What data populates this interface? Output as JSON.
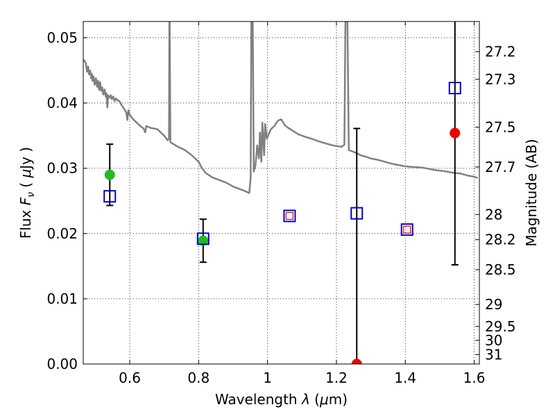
{
  "chart_data": {
    "type": "scatter",
    "xlabel": "Wavelength  λ (μm)",
    "ylabel": "Flux  F_ν  ( μJy )",
    "ylabel_parts": {
      "prefix": "Flux  ",
      "symbol": "F",
      "subscript": "ν",
      "unit_open": "  ( ",
      "mu": "μ",
      "unit": "Jy )"
    },
    "xlabel_parts": {
      "prefix": "Wavelength  ",
      "symbol": "λ",
      "unit_open": " (",
      "mu": "μ",
      "unit": "m)"
    },
    "ylabel_right": "Magnitude (AB)",
    "xlim": [
      0.465,
      1.615
    ],
    "ylim": [
      0.0,
      0.0525
    ],
    "grid": true,
    "x_ticks": [
      {
        "value": 0.6,
        "label": "0.6"
      },
      {
        "value": 0.8,
        "label": "0.8"
      },
      {
        "value": 1.0,
        "label": "1"
      },
      {
        "value": 1.2,
        "label": "1.2"
      },
      {
        "value": 1.4,
        "label": "1.4"
      },
      {
        "value": 1.6,
        "label": "1.6"
      }
    ],
    "y_ticks": [
      {
        "value": 0.0,
        "label": "0.00"
      },
      {
        "value": 0.01,
        "label": "0.01"
      },
      {
        "value": 0.02,
        "label": "0.02"
      },
      {
        "value": 0.03,
        "label": "0.03"
      },
      {
        "value": 0.04,
        "label": "0.04"
      },
      {
        "value": 0.05,
        "label": "0.05"
      }
    ],
    "mag_ticks": [
      {
        "mag": 27.2,
        "label": "27.2"
      },
      {
        "mag": 27.3,
        "label": "27.3"
      },
      {
        "mag": 27.5,
        "label": "27.5"
      },
      {
        "mag": 27.7,
        "label": "27.7"
      },
      {
        "mag": 28.0,
        "label": "28"
      },
      {
        "mag": 28.2,
        "label": "28.2"
      },
      {
        "mag": 28.5,
        "label": "28.5"
      },
      {
        "mag": 29.0,
        "label": "29"
      },
      {
        "mag": 29.5,
        "label": "29.5"
      },
      {
        "mag": 30.0,
        "label": "30"
      },
      {
        "mag": 31.0,
        "label": "31"
      }
    ],
    "series": [
      {
        "name": "model-sed",
        "kind": "line",
        "color": "#808080",
        "points": [
          [
            0.465,
            0.0467
          ],
          [
            0.472,
            0.0462
          ],
          [
            0.476,
            0.0448
          ],
          [
            0.479,
            0.0456
          ],
          [
            0.482,
            0.0444
          ],
          [
            0.485,
            0.045
          ],
          [
            0.488,
            0.0438
          ],
          [
            0.49,
            0.0445
          ],
          [
            0.492,
            0.0434
          ],
          [
            0.495,
            0.0441
          ],
          [
            0.498,
            0.0428
          ],
          [
            0.502,
            0.0438
          ],
          [
            0.505,
            0.0425
          ],
          [
            0.508,
            0.0434
          ],
          [
            0.511,
            0.042
          ],
          [
            0.514,
            0.0432
          ],
          [
            0.517,
            0.0419
          ],
          [
            0.52,
            0.0424
          ],
          [
            0.523,
            0.0413
          ],
          [
            0.527,
            0.0421
          ],
          [
            0.53,
            0.041
          ],
          [
            0.532,
            0.0415
          ],
          [
            0.535,
            0.0393
          ],
          [
            0.537,
            0.0412
          ],
          [
            0.541,
            0.0408
          ],
          [
            0.545,
            0.0412
          ],
          [
            0.548,
            0.0406
          ],
          [
            0.552,
            0.041
          ],
          [
            0.556,
            0.0403
          ],
          [
            0.56,
            0.0407
          ],
          [
            0.565,
            0.0404
          ],
          [
            0.57,
            0.0403
          ],
          [
            0.575,
            0.0398
          ],
          [
            0.58,
            0.0394
          ],
          [
            0.585,
            0.039
          ],
          [
            0.59,
            0.0385
          ],
          [
            0.593,
            0.0374
          ],
          [
            0.596,
            0.0389
          ],
          [
            0.6,
            0.0382
          ],
          [
            0.61,
            0.0375
          ],
          [
            0.62,
            0.037
          ],
          [
            0.63,
            0.0365
          ],
          [
            0.64,
            0.0361
          ],
          [
            0.645,
            0.0355
          ],
          [
            0.648,
            0.0365
          ],
          [
            0.66,
            0.0362
          ],
          [
            0.68,
            0.036
          ],
          [
            0.7,
            0.035
          ],
          [
            0.71,
            0.0343
          ],
          [
            0.714,
            0.0345
          ],
          [
            0.715,
            0.0525
          ],
          [
            0.716,
            0.0525
          ],
          [
            0.718,
            0.034
          ],
          [
            0.74,
            0.0333
          ],
          [
            0.76,
            0.0328
          ],
          [
            0.78,
            0.032
          ],
          [
            0.8,
            0.031
          ],
          [
            0.81,
            0.03
          ],
          [
            0.82,
            0.0293
          ],
          [
            0.84,
            0.0286
          ],
          [
            0.86,
            0.0282
          ],
          [
            0.88,
            0.0278
          ],
          [
            0.9,
            0.0272
          ],
          [
            0.92,
            0.0268
          ],
          [
            0.935,
            0.0265
          ],
          [
            0.947,
            0.0262
          ],
          [
            0.951,
            0.0285
          ],
          [
            0.953,
            0.0525
          ],
          [
            0.957,
            0.0525
          ],
          [
            0.96,
            0.0295
          ],
          [
            0.965,
            0.0305
          ],
          [
            0.97,
            0.0335
          ],
          [
            0.975,
            0.0315
          ],
          [
            0.978,
            0.0355
          ],
          [
            0.982,
            0.031
          ],
          [
            0.985,
            0.037
          ],
          [
            0.99,
            0.032
          ],
          [
            0.993,
            0.0368
          ],
          [
            0.998,
            0.0345
          ],
          [
            1.003,
            0.0352
          ],
          [
            1.01,
            0.036
          ],
          [
            1.02,
            0.0365
          ],
          [
            1.03,
            0.0373
          ],
          [
            1.04,
            0.0375
          ],
          [
            1.05,
            0.0366
          ],
          [
            1.06,
            0.0362
          ],
          [
            1.075,
            0.0357
          ],
          [
            1.09,
            0.0352
          ],
          [
            1.11,
            0.0348
          ],
          [
            1.13,
            0.0345
          ],
          [
            1.15,
            0.0341
          ],
          [
            1.17,
            0.0338
          ],
          [
            1.19,
            0.0335
          ],
          [
            1.215,
            0.0333
          ],
          [
            1.223,
            0.0336
          ],
          [
            1.226,
            0.0525
          ],
          [
            1.232,
            0.0525
          ],
          [
            1.236,
            0.0328
          ],
          [
            1.255,
            0.0324
          ],
          [
            1.27,
            0.032
          ],
          [
            1.29,
            0.0317
          ],
          [
            1.3,
            0.0315
          ],
          [
            1.32,
            0.0313
          ],
          [
            1.34,
            0.031
          ],
          [
            1.36,
            0.0307
          ],
          [
            1.38,
            0.0305
          ],
          [
            1.4,
            0.0303
          ],
          [
            1.42,
            0.0302
          ],
          [
            1.45,
            0.0301
          ],
          [
            1.47,
            0.0299
          ],
          [
            1.49,
            0.0297
          ],
          [
            1.52,
            0.0295
          ],
          [
            1.54,
            0.0293
          ],
          [
            1.56,
            0.0292
          ],
          [
            1.58,
            0.0289
          ],
          [
            1.6,
            0.0287
          ],
          [
            1.61,
            0.0285
          ]
        ]
      },
      {
        "name": "observed-photometry",
        "kind": "points-with-errors",
        "points": [
          {
            "x": 0.542,
            "y": 0.029,
            "lo": 0.0243,
            "hi": 0.0337,
            "color": "#22bb22"
          },
          {
            "x": 0.813,
            "y": 0.0189,
            "lo": 0.0156,
            "hi": 0.0222,
            "color": "#22bb22"
          },
          {
            "x": 1.259,
            "y": 0.0,
            "lo": 0.0,
            "hi": 0.0361,
            "color": "#ee0000"
          },
          {
            "x": 1.544,
            "y": 0.0354,
            "lo": 0.0152,
            "hi": 0.0525,
            "color": "#ee0000"
          }
        ]
      },
      {
        "name": "model-photometry",
        "kind": "open-squares",
        "color": "#0000cc",
        "points": [
          {
            "x": 0.542,
            "y": 0.0257
          },
          {
            "x": 0.813,
            "y": 0.0192
          },
          {
            "x": 1.064,
            "y": 0.0227
          },
          {
            "x": 1.259,
            "y": 0.0231
          },
          {
            "x": 1.405,
            "y": 0.0206
          },
          {
            "x": 1.544,
            "y": 0.0423
          }
        ]
      },
      {
        "name": "model-photometry-inner",
        "kind": "small-open-squares",
        "color": "#ee0000",
        "points": [
          {
            "x": 1.064,
            "y": 0.0227
          },
          {
            "x": 1.405,
            "y": 0.0206
          }
        ]
      }
    ]
  }
}
